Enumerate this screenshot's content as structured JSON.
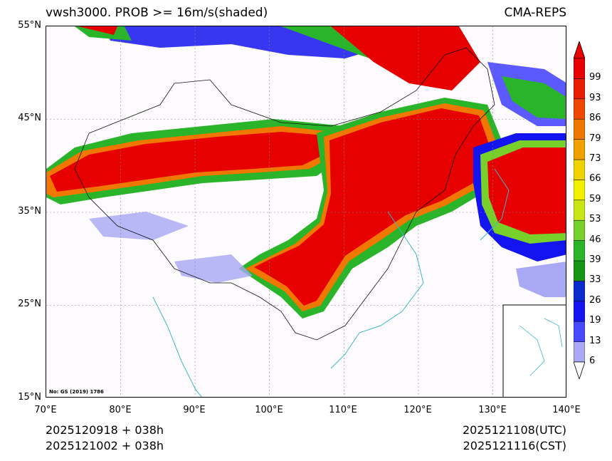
{
  "header": {
    "title_left": "vwsh3000. PROB >= 16m/s(shaded)",
    "title_right": "CMA-REPS"
  },
  "axes": {
    "lat_labels": [
      "55°N",
      "45°N",
      "35°N",
      "25°N",
      "15°N"
    ],
    "lon_labels": [
      "70°E",
      "80°E",
      "90°E",
      "100°E",
      "110°E",
      "120°E",
      "130°E",
      "140°E"
    ]
  },
  "map": {
    "note": "No: GS (2019) 1786",
    "extent": {
      "lon_min": 70,
      "lon_max": 140,
      "lat_min": 15,
      "lat_max": 55
    }
  },
  "footer": {
    "init_utc": "2025120918  +  038h",
    "init_cst": "2025121002  +  038h",
    "valid_utc": "2025121108(UTC)",
    "valid_cst": "2025121116(CST)"
  },
  "colorbar": {
    "levels": [
      "6",
      "13",
      "19",
      "26",
      "33",
      "39",
      "46",
      "53",
      "59",
      "66",
      "73",
      "79",
      "86",
      "93",
      "99"
    ],
    "colors": [
      "#a8a8f4",
      "#4848ff",
      "#1414f0",
      "#0a2ad0",
      "#149614",
      "#2ab42a",
      "#78d02a",
      "#c8e614",
      "#f0f000",
      "#f0d200",
      "#f0a000",
      "#f07800",
      "#f04600",
      "#e81e00",
      "#e60000"
    ],
    "extend_high_color": "#e60000",
    "extend_low_color": "#ffffff"
  }
}
